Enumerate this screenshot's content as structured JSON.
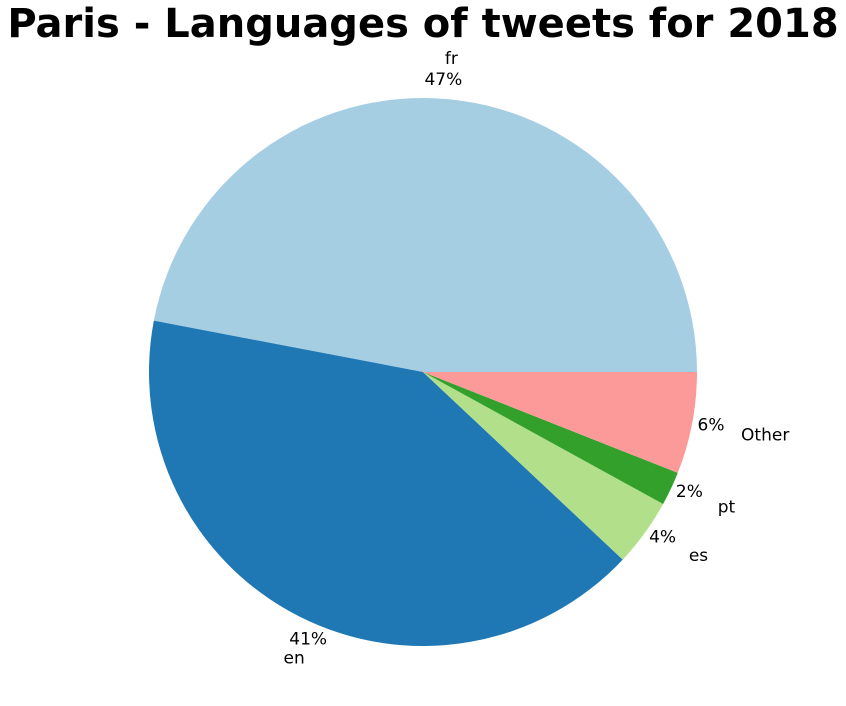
{
  "chart_data": {
    "type": "pie",
    "title": "Paris - Languages of tweets for 2018",
    "slices": [
      {
        "label": "fr",
        "value": 47,
        "pct_label": "47%",
        "color": "#a6cee3"
      },
      {
        "label": "en",
        "value": 41,
        "pct_label": "41%",
        "color": "#1f78b4"
      },
      {
        "label": "es",
        "value": 4,
        "pct_label": "4%",
        "color": "#b2df8a"
      },
      {
        "label": "pt",
        "value": 2,
        "pct_label": "2%",
        "color": "#33a02c"
      },
      {
        "label": "Other",
        "value": 6,
        "pct_label": "6%",
        "color": "#fb9a99"
      }
    ]
  }
}
